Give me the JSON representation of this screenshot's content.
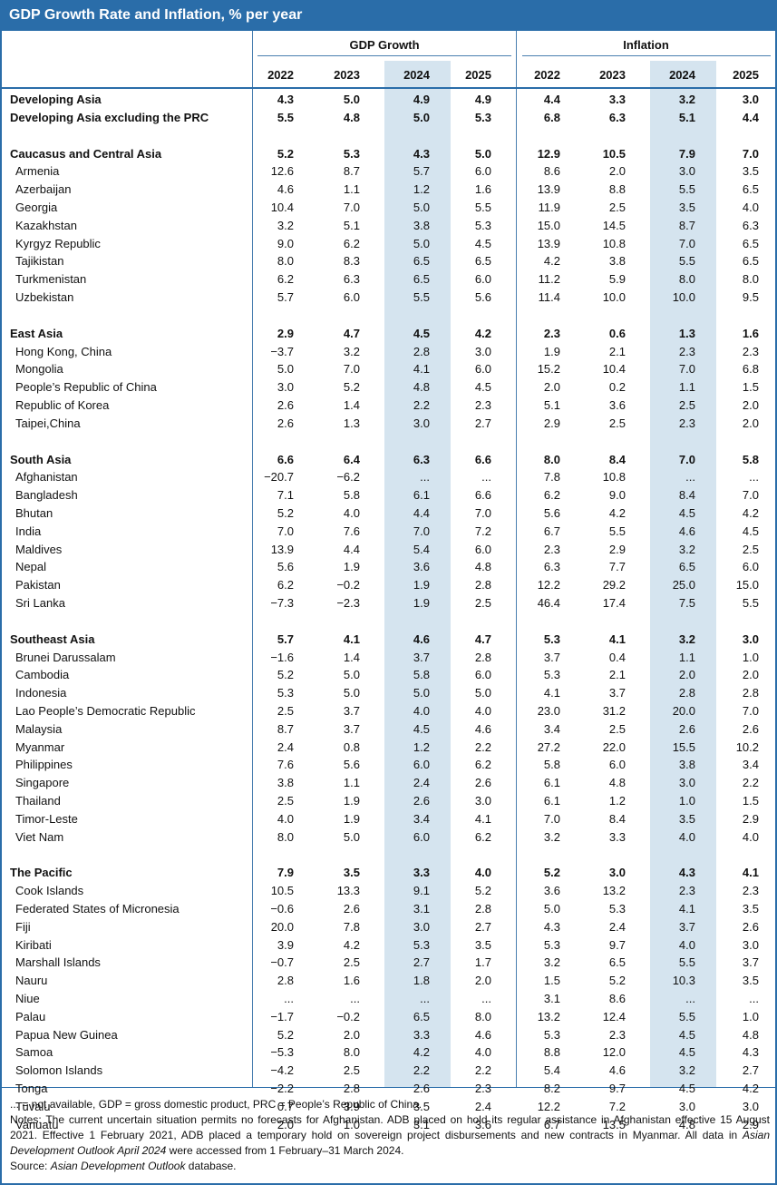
{
  "title": "GDP Growth Rate and Inflation, % per year",
  "groups": [
    "GDP Growth",
    "Inflation"
  ],
  "years": [
    "2022",
    "2023",
    "2024",
    "2025",
    "2022",
    "2023",
    "2024",
    "2025"
  ],
  "rows": [
    {
      "name": "Developing Asia",
      "type": "bold",
      "values": [
        "4.3",
        "5.0",
        "4.9",
        "4.9",
        "4.4",
        "3.3",
        "3.2",
        "3.0"
      ]
    },
    {
      "name": "Developing Asia excluding the PRC",
      "type": "bold",
      "values": [
        "5.5",
        "4.8",
        "5.0",
        "5.3",
        "6.8",
        "6.3",
        "5.1",
        "4.4"
      ]
    },
    {
      "type": "gap"
    },
    {
      "name": "Caucasus and Central Asia",
      "type": "bold",
      "values": [
        "5.2",
        "5.3",
        "4.3",
        "5.0",
        "12.9",
        "10.5",
        "7.9",
        "7.0"
      ]
    },
    {
      "name": "Armenia",
      "type": "sub",
      "values": [
        "12.6",
        "8.7",
        "5.7",
        "6.0",
        "8.6",
        "2.0",
        "3.0",
        "3.5"
      ]
    },
    {
      "name": "Azerbaijan",
      "type": "sub",
      "values": [
        "4.6",
        "1.1",
        "1.2",
        "1.6",
        "13.9",
        "8.8",
        "5.5",
        "6.5"
      ]
    },
    {
      "name": "Georgia",
      "type": "sub",
      "values": [
        "10.4",
        "7.0",
        "5.0",
        "5.5",
        "11.9",
        "2.5",
        "3.5",
        "4.0"
      ]
    },
    {
      "name": "Kazakhstan",
      "type": "sub",
      "values": [
        "3.2",
        "5.1",
        "3.8",
        "5.3",
        "15.0",
        "14.5",
        "8.7",
        "6.3"
      ]
    },
    {
      "name": "Kyrgyz Republic",
      "type": "sub",
      "values": [
        "9.0",
        "6.2",
        "5.0",
        "4.5",
        "13.9",
        "10.8",
        "7.0",
        "6.5"
      ]
    },
    {
      "name": "Tajikistan",
      "type": "sub",
      "values": [
        "8.0",
        "8.3",
        "6.5",
        "6.5",
        "4.2",
        "3.8",
        "5.5",
        "6.5"
      ]
    },
    {
      "name": "Turkmenistan",
      "type": "sub",
      "values": [
        "6.2",
        "6.3",
        "6.5",
        "6.0",
        "11.2",
        "5.9",
        "8.0",
        "8.0"
      ]
    },
    {
      "name": "Uzbekistan",
      "type": "sub",
      "values": [
        "5.7",
        "6.0",
        "5.5",
        "5.6",
        "11.4",
        "10.0",
        "10.0",
        "9.5"
      ]
    },
    {
      "type": "gap"
    },
    {
      "name": "East Asia",
      "type": "bold",
      "values": [
        "2.9",
        "4.7",
        "4.5",
        "4.2",
        "2.3",
        "0.6",
        "1.3",
        "1.6"
      ]
    },
    {
      "name": "Hong Kong, China",
      "type": "sub",
      "values": [
        "−3.7",
        "3.2",
        "2.8",
        "3.0",
        "1.9",
        "2.1",
        "2.3",
        "2.3"
      ]
    },
    {
      "name": "Mongolia",
      "type": "sub",
      "values": [
        "5.0",
        "7.0",
        "4.1",
        "6.0",
        "15.2",
        "10.4",
        "7.0",
        "6.8"
      ]
    },
    {
      "name": "People’s Republic of China",
      "type": "sub",
      "values": [
        "3.0",
        "5.2",
        "4.8",
        "4.5",
        "2.0",
        "0.2",
        "1.1",
        "1.5"
      ]
    },
    {
      "name": "Republic of Korea",
      "type": "sub",
      "values": [
        "2.6",
        "1.4",
        "2.2",
        "2.3",
        "5.1",
        "3.6",
        "2.5",
        "2.0"
      ]
    },
    {
      "name": "Taipei,China",
      "type": "sub",
      "values": [
        "2.6",
        "1.3",
        "3.0",
        "2.7",
        "2.9",
        "2.5",
        "2.3",
        "2.0"
      ]
    },
    {
      "type": "gap"
    },
    {
      "name": "South Asia",
      "type": "bold",
      "values": [
        "6.6",
        "6.4",
        "6.3",
        "6.6",
        "8.0",
        "8.4",
        "7.0",
        "5.8"
      ]
    },
    {
      "name": "Afghanistan",
      "type": "sub",
      "values": [
        "−20.7",
        "−6.2",
        "...",
        "...",
        "7.8",
        "10.8",
        "...",
        "..."
      ]
    },
    {
      "name": "Bangladesh",
      "type": "sub",
      "values": [
        "7.1",
        "5.8",
        "6.1",
        "6.6",
        "6.2",
        "9.0",
        "8.4",
        "7.0"
      ]
    },
    {
      "name": "Bhutan",
      "type": "sub",
      "values": [
        "5.2",
        "4.0",
        "4.4",
        "7.0",
        "5.6",
        "4.2",
        "4.5",
        "4.2"
      ]
    },
    {
      "name": "India",
      "type": "sub",
      "values": [
        "7.0",
        "7.6",
        "7.0",
        "7.2",
        "6.7",
        "5.5",
        "4.6",
        "4.5"
      ]
    },
    {
      "name": "Maldives",
      "type": "sub",
      "values": [
        "13.9",
        "4.4",
        "5.4",
        "6.0",
        "2.3",
        "2.9",
        "3.2",
        "2.5"
      ]
    },
    {
      "name": "Nepal",
      "type": "sub",
      "values": [
        "5.6",
        "1.9",
        "3.6",
        "4.8",
        "6.3",
        "7.7",
        "6.5",
        "6.0"
      ]
    },
    {
      "name": "Pakistan",
      "type": "sub",
      "values": [
        "6.2",
        "−0.2",
        "1.9",
        "2.8",
        "12.2",
        "29.2",
        "25.0",
        "15.0"
      ]
    },
    {
      "name": "Sri Lanka",
      "type": "sub",
      "values": [
        "−7.3",
        "−2.3",
        "1.9",
        "2.5",
        "46.4",
        "17.4",
        "7.5",
        "5.5"
      ]
    },
    {
      "type": "gap"
    },
    {
      "name": "Southeast Asia",
      "type": "bold",
      "values": [
        "5.7",
        "4.1",
        "4.6",
        "4.7",
        "5.3",
        "4.1",
        "3.2",
        "3.0"
      ]
    },
    {
      "name": "Brunei Darussalam",
      "type": "sub",
      "values": [
        "−1.6",
        "1.4",
        "3.7",
        "2.8",
        "3.7",
        "0.4",
        "1.1",
        "1.0"
      ]
    },
    {
      "name": "Cambodia",
      "type": "sub",
      "values": [
        "5.2",
        "5.0",
        "5.8",
        "6.0",
        "5.3",
        "2.1",
        "2.0",
        "2.0"
      ]
    },
    {
      "name": "Indonesia",
      "type": "sub",
      "values": [
        "5.3",
        "5.0",
        "5.0",
        "5.0",
        "4.1",
        "3.7",
        "2.8",
        "2.8"
      ]
    },
    {
      "name": "Lao People’s Democratic Republic",
      "type": "sub",
      "values": [
        "2.5",
        "3.7",
        "4.0",
        "4.0",
        "23.0",
        "31.2",
        "20.0",
        "7.0"
      ]
    },
    {
      "name": "Malaysia",
      "type": "sub",
      "values": [
        "8.7",
        "3.7",
        "4.5",
        "4.6",
        "3.4",
        "2.5",
        "2.6",
        "2.6"
      ]
    },
    {
      "name": "Myanmar",
      "type": "sub",
      "values": [
        "2.4",
        "0.8",
        "1.2",
        "2.2",
        "27.2",
        "22.0",
        "15.5",
        "10.2"
      ]
    },
    {
      "name": "Philippines",
      "type": "sub",
      "values": [
        "7.6",
        "5.6",
        "6.0",
        "6.2",
        "5.8",
        "6.0",
        "3.8",
        "3.4"
      ]
    },
    {
      "name": "Singapore",
      "type": "sub",
      "values": [
        "3.8",
        "1.1",
        "2.4",
        "2.6",
        "6.1",
        "4.8",
        "3.0",
        "2.2"
      ]
    },
    {
      "name": "Thailand",
      "type": "sub",
      "values": [
        "2.5",
        "1.9",
        "2.6",
        "3.0",
        "6.1",
        "1.2",
        "1.0",
        "1.5"
      ]
    },
    {
      "name": "Timor-Leste",
      "type": "sub",
      "values": [
        "4.0",
        "1.9",
        "3.4",
        "4.1",
        "7.0",
        "8.4",
        "3.5",
        "2.9"
      ]
    },
    {
      "name": "Viet Nam",
      "type": "sub",
      "values": [
        "8.0",
        "5.0",
        "6.0",
        "6.2",
        "3.2",
        "3.3",
        "4.0",
        "4.0"
      ]
    },
    {
      "type": "gap"
    },
    {
      "name": "The Pacific",
      "type": "bold",
      "values": [
        "7.9",
        "3.5",
        "3.3",
        "4.0",
        "5.2",
        "3.0",
        "4.3",
        "4.1"
      ]
    },
    {
      "name": "Cook Islands",
      "type": "sub",
      "values": [
        "10.5",
        "13.3",
        "9.1",
        "5.2",
        "3.6",
        "13.2",
        "2.3",
        "2.3"
      ]
    },
    {
      "name": "Federated States of Micronesia",
      "type": "sub",
      "values": [
        "−0.6",
        "2.6",
        "3.1",
        "2.8",
        "5.0",
        "5.3",
        "4.1",
        "3.5"
      ]
    },
    {
      "name": "Fiji",
      "type": "sub",
      "values": [
        "20.0",
        "7.8",
        "3.0",
        "2.7",
        "4.3",
        "2.4",
        "3.7",
        "2.6"
      ]
    },
    {
      "name": "Kiribati",
      "type": "sub",
      "values": [
        "3.9",
        "4.2",
        "5.3",
        "3.5",
        "5.3",
        "9.7",
        "4.0",
        "3.0"
      ]
    },
    {
      "name": "Marshall Islands",
      "type": "sub",
      "values": [
        "−0.7",
        "2.5",
        "2.7",
        "1.7",
        "3.2",
        "6.5",
        "5.5",
        "3.7"
      ]
    },
    {
      "name": "Nauru",
      "type": "sub",
      "values": [
        "2.8",
        "1.6",
        "1.8",
        "2.0",
        "1.5",
        "5.2",
        "10.3",
        "3.5"
      ]
    },
    {
      "name": "Niue",
      "type": "sub",
      "values": [
        "...",
        "...",
        "...",
        "...",
        "3.1",
        "8.6",
        "...",
        "..."
      ]
    },
    {
      "name": "Palau",
      "type": "sub",
      "values": [
        "−1.7",
        "−0.2",
        "6.5",
        "8.0",
        "13.2",
        "12.4",
        "5.5",
        "1.0"
      ]
    },
    {
      "name": "Papua New Guinea",
      "type": "sub",
      "values": [
        "5.2",
        "2.0",
        "3.3",
        "4.6",
        "5.3",
        "2.3",
        "4.5",
        "4.8"
      ]
    },
    {
      "name": "Samoa",
      "type": "sub",
      "values": [
        "−5.3",
        "8.0",
        "4.2",
        "4.0",
        "8.8",
        "12.0",
        "4.5",
        "4.3"
      ]
    },
    {
      "name": "Solomon Islands",
      "type": "sub",
      "values": [
        "−4.2",
        "2.5",
        "2.2",
        "2.2",
        "5.4",
        "4.6",
        "3.2",
        "2.7"
      ]
    },
    {
      "name": "Tonga",
      "type": "sub",
      "values": [
        "−2.2",
        "2.8",
        "2.6",
        "2.3",
        "8.2",
        "9.7",
        "4.5",
        "4.2"
      ]
    },
    {
      "name": "Tuvalu",
      "type": "sub",
      "values": [
        "0.7",
        "3.9",
        "3.5",
        "2.4",
        "12.2",
        "7.2",
        "3.0",
        "3.0"
      ]
    },
    {
      "name": "Vanuatu",
      "type": "sub",
      "values": [
        "2.0",
        "1.0",
        "3.1",
        "3.6",
        "6.7",
        "13.5",
        "4.8",
        "2.9"
      ]
    }
  ],
  "notes": {
    "abbrev": "... = not available, GDP = gross domestic product, PRC = People’s Republic of China.",
    "notes_a": "Notes: The current uncertain situation permits no forecasts for Afghanistan. ADB placed on hold its regular assistance in Afghanistan effective 15 August 2021. Effective 1 February 2021, ADB placed a temporary hold on sovereign project disbursements and new contracts in Myanmar. All data in ",
    "notes_italic": "Asian Development Outlook April 2024",
    "notes_b": " were accessed from 1 February–31 March 2024.",
    "source_label": "Source: ",
    "source_italic": "Asian Development Outlook",
    "source_end": " database."
  },
  "colors": {
    "header_blue": "#2a6da9",
    "band_blue": "#d5e4ef",
    "rule_blue": "#4a7fb0"
  }
}
